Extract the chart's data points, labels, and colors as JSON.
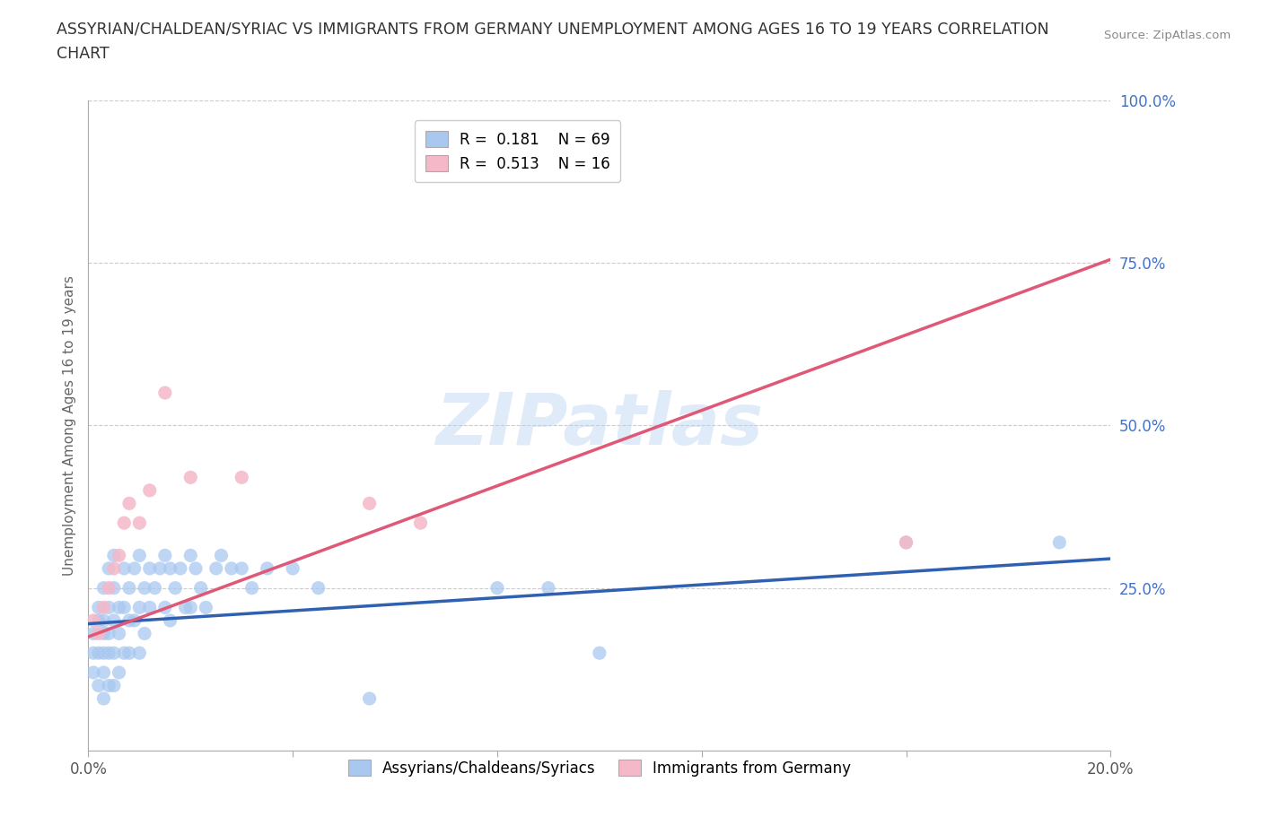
{
  "title_line1": "ASSYRIAN/CHALDEAN/SYRIAC VS IMMIGRANTS FROM GERMANY UNEMPLOYMENT AMONG AGES 16 TO 19 YEARS CORRELATION",
  "title_line2": "CHART",
  "source": "Source: ZipAtlas.com",
  "ylabel": "Unemployment Among Ages 16 to 19 years",
  "xlim": [
    0.0,
    0.2
  ],
  "ylim": [
    0.0,
    1.0
  ],
  "xticks": [
    0.0,
    0.04,
    0.08,
    0.12,
    0.16,
    0.2
  ],
  "xtick_labels": [
    "0.0%",
    "",
    "",
    "",
    "",
    "20.0%"
  ],
  "yticks": [
    0.0,
    0.25,
    0.5,
    0.75,
    1.0
  ],
  "ytick_labels": [
    "",
    "25.0%",
    "50.0%",
    "75.0%",
    "100.0%"
  ],
  "blue_color": "#A8C8F0",
  "pink_color": "#F5B8C8",
  "blue_line_color": "#3060B0",
  "pink_line_color": "#E05878",
  "legend_R1": "0.181",
  "legend_N1": "69",
  "legend_R2": "0.513",
  "legend_N2": "16",
  "watermark": "ZIPatlas",
  "blue_scatter_x": [
    0.001,
    0.001,
    0.001,
    0.002,
    0.002,
    0.002,
    0.002,
    0.003,
    0.003,
    0.003,
    0.003,
    0.003,
    0.003,
    0.004,
    0.004,
    0.004,
    0.004,
    0.004,
    0.005,
    0.005,
    0.005,
    0.005,
    0.005,
    0.006,
    0.006,
    0.006,
    0.007,
    0.007,
    0.007,
    0.008,
    0.008,
    0.008,
    0.009,
    0.009,
    0.01,
    0.01,
    0.01,
    0.011,
    0.011,
    0.012,
    0.012,
    0.013,
    0.014,
    0.015,
    0.015,
    0.016,
    0.016,
    0.017,
    0.018,
    0.019,
    0.02,
    0.02,
    0.021,
    0.022,
    0.023,
    0.025,
    0.026,
    0.028,
    0.03,
    0.032,
    0.035,
    0.04,
    0.045,
    0.055,
    0.08,
    0.09,
    0.1,
    0.16,
    0.19
  ],
  "blue_scatter_y": [
    0.18,
    0.15,
    0.12,
    0.2,
    0.22,
    0.15,
    0.1,
    0.25,
    0.2,
    0.18,
    0.15,
    0.12,
    0.08,
    0.22,
    0.18,
    0.28,
    0.15,
    0.1,
    0.3,
    0.25,
    0.2,
    0.15,
    0.1,
    0.22,
    0.18,
    0.12,
    0.28,
    0.22,
    0.15,
    0.25,
    0.2,
    0.15,
    0.28,
    0.2,
    0.3,
    0.22,
    0.15,
    0.25,
    0.18,
    0.28,
    0.22,
    0.25,
    0.28,
    0.3,
    0.22,
    0.28,
    0.2,
    0.25,
    0.28,
    0.22,
    0.3,
    0.22,
    0.28,
    0.25,
    0.22,
    0.28,
    0.3,
    0.28,
    0.28,
    0.25,
    0.28,
    0.28,
    0.25,
    0.08,
    0.25,
    0.25,
    0.15,
    0.32,
    0.32
  ],
  "pink_scatter_x": [
    0.001,
    0.002,
    0.003,
    0.004,
    0.005,
    0.006,
    0.007,
    0.008,
    0.01,
    0.012,
    0.015,
    0.02,
    0.03,
    0.055,
    0.065,
    0.16
  ],
  "pink_scatter_y": [
    0.2,
    0.18,
    0.22,
    0.25,
    0.28,
    0.3,
    0.35,
    0.38,
    0.35,
    0.4,
    0.55,
    0.42,
    0.42,
    0.38,
    0.35,
    0.32
  ],
  "blue_line_x0": 0.0,
  "blue_line_y0": 0.195,
  "blue_line_x1": 0.2,
  "blue_line_y1": 0.295,
  "pink_line_x0": 0.0,
  "pink_line_y0": 0.175,
  "pink_line_x1": 0.2,
  "pink_line_y1": 0.755,
  "grid_color": "#CCCCCC",
  "background_color": "#FFFFFF",
  "tick_color": "#4472C4",
  "ylabel_color": "#666666",
  "title_color": "#333333"
}
